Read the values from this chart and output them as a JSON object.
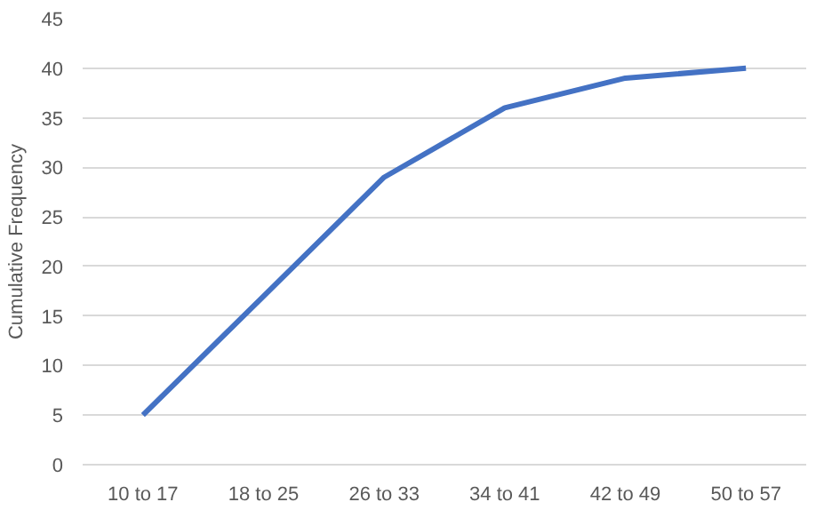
{
  "chart_data": {
    "type": "line",
    "ylabel": "Cumulative Frequency",
    "categories": [
      "10 to 17",
      "18 to 25",
      "26 to 33",
      "34 to 41",
      "42 to 49",
      "50 to 57"
    ],
    "series": [
      {
        "color": "#4472c4",
        "values": [
          5,
          17,
          29,
          36,
          39,
          40
        ]
      }
    ],
    "ylim": [
      0,
      45
    ],
    "yticks": [
      0,
      5,
      10,
      15,
      20,
      25,
      30,
      35,
      40,
      45
    ],
    "grid": "y",
    "marker": "none",
    "line_style": "solid"
  }
}
